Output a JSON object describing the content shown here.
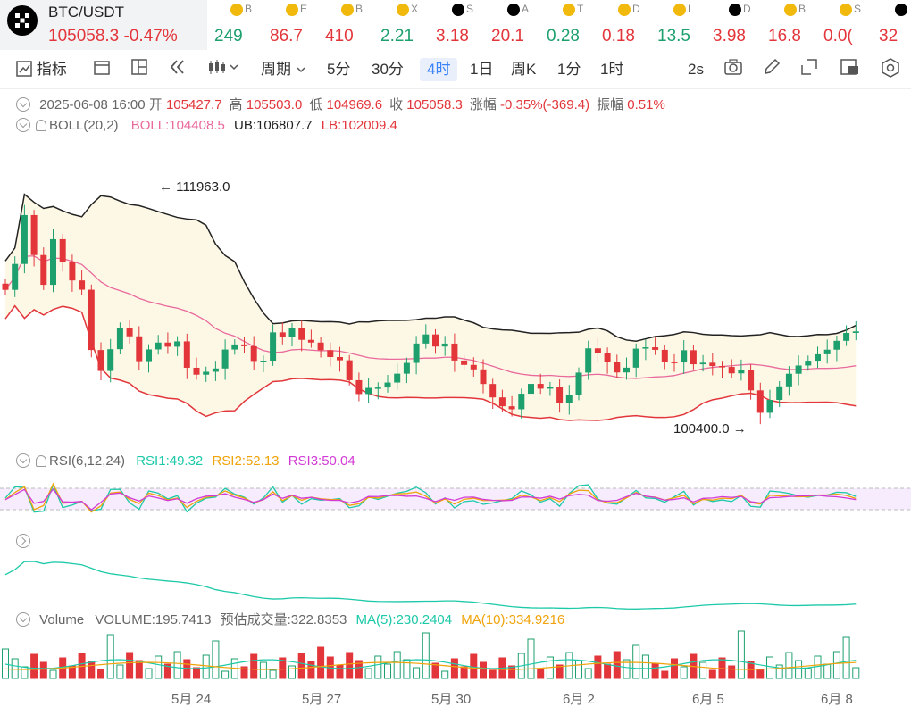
{
  "ticker": {
    "main": {
      "symbol": "BTC/USDT",
      "price": "105058.3",
      "change": "-0.47%"
    },
    "items": [
      {
        "icon": "binance-icon",
        "label": "B",
        "value": "249",
        "dir": "up"
      },
      {
        "icon": "binance-icon",
        "label": "E",
        "value": "86.7",
        "dir": "dn"
      },
      {
        "icon": "binance-icon",
        "label": "B",
        "value": "410",
        "dir": "dn"
      },
      {
        "icon": "binance-icon",
        "label": "X",
        "value": "2.21",
        "dir": "up"
      },
      {
        "icon": "okx-icon",
        "label": "S",
        "value": "3.18",
        "dir": "dn"
      },
      {
        "icon": "okx-icon",
        "label": "A",
        "value": "20.1",
        "dir": "dn"
      },
      {
        "icon": "binance-icon",
        "label": "T",
        "value": "0.28",
        "dir": "up"
      },
      {
        "icon": "binance-icon",
        "label": "D",
        "value": "0.18",
        "dir": "dn"
      },
      {
        "icon": "binance-icon",
        "label": "L",
        "value": "13.5",
        "dir": "up"
      },
      {
        "icon": "okx-icon",
        "label": "D",
        "value": "3.98",
        "dir": "dn"
      },
      {
        "icon": "binance-icon",
        "label": "B",
        "value": "16.8",
        "dir": "dn"
      },
      {
        "icon": "binance-icon",
        "label": "S",
        "value": "0.0(",
        "dir": "dn"
      },
      {
        "icon": "okx-icon",
        "label": "",
        "value": "32",
        "dir": "dn"
      }
    ]
  },
  "toolbar": {
    "indicators": "指标",
    "period": "周期",
    "intervals": [
      "5分",
      "30分",
      "4时",
      "1日",
      "周K",
      "1分",
      "1时"
    ],
    "active_interval": "4时",
    "refresh": "2s"
  },
  "ohlc": {
    "datetime": "2025-06-08 16:00",
    "open_label": "开",
    "open": "105427.7",
    "high_label": "高",
    "high": "105503.0",
    "low_label": "低",
    "low": "104969.6",
    "close_label": "收",
    "close": "105058.3",
    "change_label": "涨幅",
    "change": "-0.35%(-369.4)",
    "amplitude_label": "振幅",
    "amplitude": "0.51%"
  },
  "boll": {
    "name": "BOLL(20,2)",
    "boll": "BOLL:104408.5",
    "ub": "UB:106807.7",
    "lb": "LB:102009.4"
  },
  "rsi": {
    "name": "RSI(6,12,24)",
    "rsi1": "RSI1:49.32",
    "rsi2": "RSI2:52.13",
    "rsi3": "RSI3:50.04"
  },
  "volume": {
    "name": "Volume",
    "volume": "VOLUME:195.7413",
    "est": "预估成交量:322.8353",
    "ma5": "MA(5):230.2404",
    "ma10": "MA(10):334.9216"
  },
  "annotations": {
    "high_mark": "111963.0",
    "low_mark": "100400.0"
  },
  "x_labels": [
    "5月 24",
    "5月 27",
    "5月 30",
    "6月 2",
    "6月 5",
    "6月 8"
  ],
  "colors": {
    "up": "#1ea06e",
    "down": "#e2363b",
    "boll_mid": "#e96a9c",
    "ub": "#222222",
    "lb": "#e2363b",
    "active": "#3b82f6"
  }
}
